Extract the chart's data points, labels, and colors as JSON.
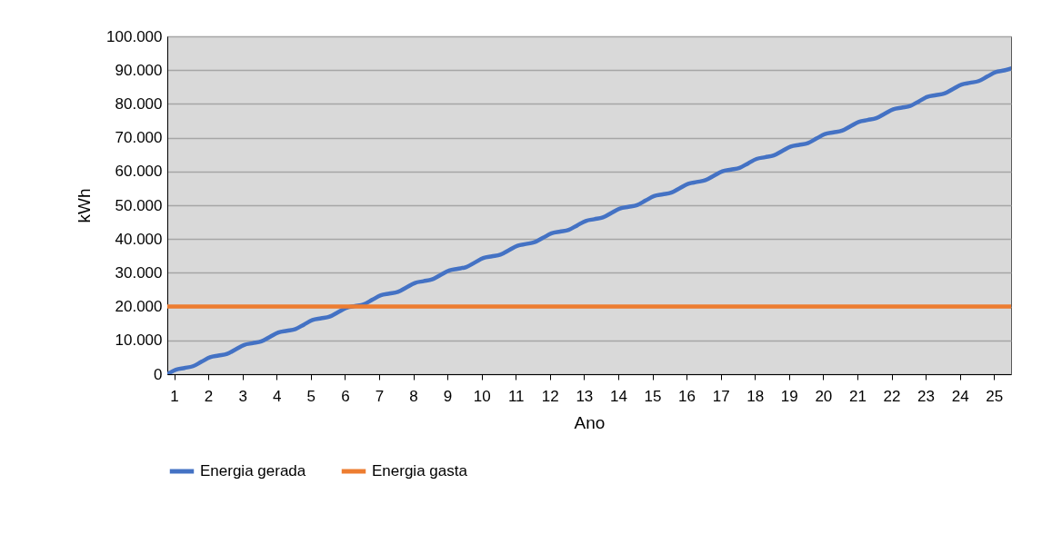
{
  "chart_data": {
    "type": "line",
    "xlabel": "Ano",
    "ylabel": "kWh",
    "x": [
      0.8,
      1.05,
      1.3,
      1.55,
      1.8,
      2.05,
      2.3,
      2.55,
      2.8,
      3.05,
      3.3,
      3.55,
      3.8,
      4.05,
      4.3,
      4.55,
      4.8,
      5.05,
      5.3,
      5.55,
      5.8,
      6.05,
      6.3,
      6.55,
      6.8,
      7.05,
      7.3,
      7.55,
      7.8,
      8.05,
      8.3,
      8.55,
      8.8,
      9.05,
      9.3,
      9.55,
      9.8,
      10.05,
      10.3,
      10.55,
      10.8,
      11.05,
      11.3,
      11.55,
      11.8,
      12.05,
      12.3,
      12.55,
      12.8,
      13.05,
      13.3,
      13.55,
      13.8,
      14.05,
      14.3,
      14.55,
      14.8,
      15.05,
      15.3,
      15.55,
      15.8,
      16.05,
      16.3,
      16.55,
      16.8,
      17.05,
      17.3,
      17.55,
      17.8,
      18.05,
      18.3,
      18.55,
      18.8,
      19.05,
      19.3,
      19.55,
      19.8,
      20.05,
      20.3,
      20.55,
      20.8,
      21.05,
      21.3,
      21.55,
      21.8,
      22.05,
      22.3,
      22.55,
      22.8,
      23.05,
      23.3,
      23.55,
      23.8,
      24.05,
      24.3,
      24.55,
      24.8,
      25.05,
      25.3,
      25.5
    ],
    "series": [
      {
        "name": "Energia gerada",
        "color": "#4472c4",
        "values": [
          0,
          1320,
          1835,
          2350,
          3670,
          4990,
          5505,
          6020,
          7340,
          8660,
          9175,
          9690,
          11010,
          12330,
          12845,
          13360,
          14680,
          16000,
          16515,
          17030,
          18350,
          19670,
          20185,
          20700,
          22020,
          23340,
          23855,
          24370,
          25690,
          27010,
          27525,
          28040,
          29360,
          30680,
          31195,
          31710,
          33030,
          34350,
          34865,
          35380,
          36700,
          38020,
          38535,
          39050,
          40370,
          41690,
          42205,
          42720,
          44040,
          45360,
          45875,
          46390,
          47710,
          49030,
          49545,
          50060,
          51380,
          52700,
          53215,
          53730,
          55050,
          56370,
          56885,
          57400,
          58720,
          60040,
          60555,
          61070,
          62390,
          63710,
          64225,
          64740,
          66060,
          67380,
          67895,
          68410,
          69730,
          71050,
          71565,
          72080,
          73400,
          74720,
          75235,
          75750,
          77070,
          78390,
          78905,
          79420,
          80740,
          82060,
          82575,
          83090,
          84410,
          85730,
          86245,
          86760,
          88080,
          89400,
          89915,
          90500
        ]
      },
      {
        "name": "Energia gasta",
        "color": "#ed7d31",
        "x": [
          0.8,
          25.5
        ],
        "values": [
          20000,
          20000
        ]
      }
    ],
    "xlim": [
      0.8,
      25.5
    ],
    "xticks": [
      1,
      2,
      3,
      4,
      5,
      6,
      7,
      8,
      9,
      10,
      11,
      12,
      13,
      14,
      15,
      16,
      17,
      18,
      19,
      20,
      21,
      22,
      23,
      24,
      25
    ],
    "ylim": [
      0,
      100000
    ],
    "yticks": [
      0,
      {
        "value": 10000,
        "label": "10.000"
      },
      {
        "value": 20000,
        "label": "20.000"
      },
      {
        "value": 30000,
        "label": "30.000"
      },
      {
        "value": 40000,
        "label": "40.000"
      },
      {
        "value": 50000,
        "label": "50.000"
      },
      {
        "value": 60000,
        "label": "60.000"
      },
      {
        "value": 70000,
        "label": "70.000"
      },
      {
        "value": 80000,
        "label": "80.000"
      },
      {
        "value": 90000,
        "label": "90.000"
      },
      {
        "value": 100000,
        "label": "100.000"
      }
    ],
    "grid": "y",
    "legend": "bottom",
    "marker": "none",
    "line_style": "solid"
  }
}
